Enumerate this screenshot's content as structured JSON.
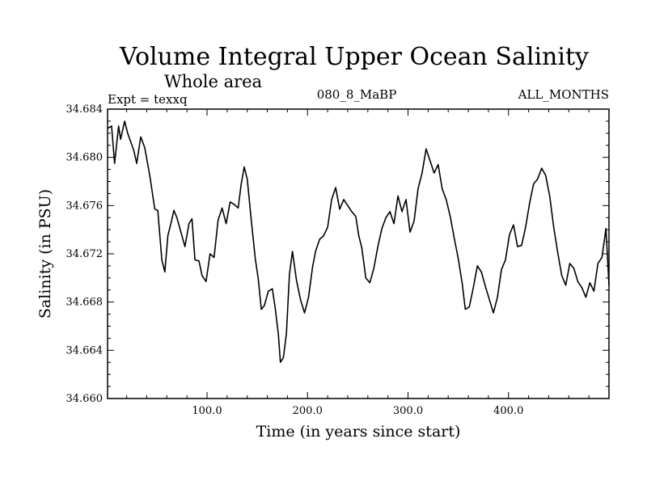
{
  "chart_data": {
    "type": "line",
    "title": "Volume Integral Upper Ocean Salinity",
    "subtitle": "Whole area",
    "experiment": "Expt = texxq",
    "run_label": "080_8_MaBP",
    "months_label": "ALL_MONTHS",
    "xlabel": "Time (in years since start)",
    "ylabel": "Salinity (in PSU)",
    "xlim": [
      1,
      500
    ],
    "ylim": [
      34.66,
      34.684
    ],
    "x_ticks": [
      100,
      200,
      300,
      400
    ],
    "x_tick_labels": [
      "100.0",
      "200.0",
      "300.0",
      "400.0"
    ],
    "y_ticks": [
      34.66,
      34.664,
      34.668,
      34.672,
      34.676,
      34.68,
      34.684
    ],
    "y_tick_labels": [
      "34.660",
      "34.664",
      "34.668",
      "34.672",
      "34.676",
      "34.680",
      "34.684"
    ],
    "series": [
      {
        "name": "Salinity",
        "x": [
          1,
          5,
          8,
          12,
          14,
          18,
          21,
          24,
          27,
          30,
          34,
          38,
          43,
          48,
          51,
          55,
          58,
          61,
          64,
          67,
          70,
          74,
          78,
          82,
          85,
          88,
          92,
          95,
          99,
          103,
          107,
          111,
          115,
          119,
          123,
          127,
          131,
          134,
          137,
          140,
          144,
          148,
          151,
          154,
          157,
          161,
          165,
          168,
          171,
          173,
          176,
          179,
          182,
          185,
          189,
          193,
          197,
          201,
          205,
          208,
          212,
          216,
          220,
          224,
          228,
          232,
          236,
          240,
          244,
          248,
          251,
          254,
          258,
          262,
          266,
          270,
          274,
          278,
          282,
          286,
          290,
          294,
          298,
          302,
          306,
          310,
          314,
          318,
          322,
          326,
          330,
          334,
          338,
          342,
          346,
          350,
          354,
          357,
          361,
          365,
          369,
          373,
          377,
          381,
          385,
          389,
          393,
          397,
          401,
          405,
          409,
          413,
          417,
          421,
          425,
          429,
          433,
          437,
          441,
          445,
          449,
          453,
          457,
          461,
          465,
          469,
          473,
          477,
          481,
          485,
          489,
          493,
          497,
          500
        ],
        "values": [
          34.6824,
          34.6826,
          34.6795,
          34.6826,
          34.6815,
          34.683,
          34.682,
          34.6813,
          34.6806,
          34.6795,
          34.6817,
          34.6808,
          34.6785,
          34.6757,
          34.6756,
          34.6715,
          34.6705,
          34.6735,
          34.6745,
          34.6756,
          34.675,
          34.6738,
          34.6726,
          34.6745,
          34.6749,
          34.6715,
          34.6714,
          34.6702,
          34.6697,
          34.672,
          34.6717,
          34.6748,
          34.6758,
          34.6745,
          34.6763,
          34.6761,
          34.6758,
          34.6778,
          34.6792,
          34.6782,
          34.6748,
          34.6716,
          34.6699,
          34.6674,
          34.6677,
          34.6689,
          34.6691,
          34.6674,
          34.6653,
          34.663,
          34.6634,
          34.6654,
          34.6703,
          34.6722,
          34.6698,
          34.6682,
          34.6671,
          34.6684,
          34.6709,
          34.6722,
          34.6732,
          34.6735,
          34.6742,
          34.6765,
          34.6775,
          34.6757,
          34.6765,
          34.676,
          34.6755,
          34.6751,
          34.6735,
          34.6725,
          34.67,
          34.6696,
          34.6708,
          34.6726,
          34.6741,
          34.675,
          34.6755,
          34.6745,
          34.6768,
          34.6755,
          34.6765,
          34.6738,
          34.6747,
          34.6774,
          34.6787,
          34.6807,
          34.6797,
          34.6787,
          34.6794,
          34.6774,
          34.6765,
          34.6751,
          34.6733,
          34.6716,
          34.6695,
          34.6674,
          34.6676,
          34.6692,
          34.671,
          34.6705,
          34.6693,
          34.6682,
          34.6671,
          34.6684,
          34.6707,
          34.6715,
          34.6736,
          34.6744,
          34.6726,
          34.6727,
          34.6742,
          34.6762,
          34.6778,
          34.6782,
          34.6791,
          34.6785,
          34.6768,
          34.6742,
          34.6721,
          34.6702,
          34.6694,
          34.6712,
          34.6708,
          34.6697,
          34.6692,
          34.6684,
          34.6696,
          34.6689,
          34.6712,
          34.6717,
          34.6741,
          34.6694
        ]
      }
    ]
  }
}
